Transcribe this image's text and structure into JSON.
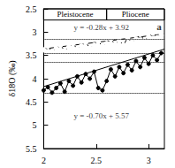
{
  "chart_data": {
    "type": "line",
    "ylabel": "δ18O (‰)",
    "xlim": [
      2,
      3.15
    ],
    "xticks": [
      2,
      2.5,
      3
    ],
    "ylim": [
      2.5,
      5.5
    ],
    "yticks": [
      2.5,
      3,
      3.5,
      4,
      4.5,
      5,
      5.5
    ],
    "series": [
      {
        "marker": "open",
        "color": "#000000",
        "line_style": "solid",
        "x": [
          2.0,
          2.04,
          2.08,
          2.12,
          2.16,
          2.2,
          2.24,
          2.28,
          2.32,
          2.36,
          2.4,
          2.44,
          2.48,
          2.52,
          2.56,
          2.6,
          2.64,
          2.68,
          2.72,
          2.76,
          2.8,
          2.84,
          2.88,
          2.92,
          2.96,
          3.0,
          3.04,
          3.08,
          3.12
        ],
        "values": [
          3.38,
          3.3,
          3.42,
          3.35,
          3.28,
          3.4,
          3.32,
          3.25,
          3.36,
          3.3,
          3.22,
          3.34,
          3.28,
          3.2,
          3.3,
          3.24,
          3.15,
          3.26,
          3.18,
          3.28,
          3.12,
          3.22,
          3.15,
          3.05,
          3.18,
          3.1,
          3.02,
          3.12,
          3.05
        ]
      },
      {
        "marker": "filled",
        "color": "#000000",
        "line_style": "solid",
        "x": [
          2.0,
          2.04,
          2.08,
          2.12,
          2.16,
          2.2,
          2.24,
          2.28,
          2.32,
          2.36,
          2.4,
          2.44,
          2.48,
          2.52,
          2.56,
          2.6,
          2.64,
          2.68,
          2.72,
          2.76,
          2.8,
          2.84,
          2.88,
          2.92,
          2.96,
          3.0,
          3.04,
          3.08,
          3.12
        ],
        "values": [
          4.25,
          4.18,
          4.3,
          4.2,
          4.1,
          4.28,
          4.05,
          4.15,
          3.95,
          4.08,
          3.9,
          4.0,
          3.85,
          4.2,
          4.25,
          4.05,
          3.8,
          3.95,
          3.75,
          3.88,
          3.7,
          3.82,
          3.62,
          3.75,
          3.55,
          3.68,
          3.5,
          3.6,
          3.45
        ]
      },
      {
        "marker": "none",
        "color": "#000000",
        "line_style": "solid",
        "x": [
          2.0,
          3.15
        ],
        "values": [
          3.36,
          3.038
        ]
      },
      {
        "marker": "none",
        "color": "#000000",
        "line_style": "solid",
        "x": [
          2.0,
          3.15
        ],
        "values": [
          4.17,
          3.365
        ]
      }
    ],
    "reference_lines": [
      3.15,
      3.45,
      3.65,
      4.3
    ],
    "epochs": [
      {
        "label": "Pleistocene",
        "from": 2,
        "to": 2.6
      },
      {
        "label": "Pliocene",
        "from": 2.6,
        "to": 3.15
      }
    ],
    "annotations": [
      {
        "text": "y = -0.28x + 3.92",
        "x": 2.55,
        "y": 2.9
      },
      {
        "text": "y = -0.70x + 5.57",
        "x": 2.55,
        "y": 4.8
      },
      {
        "text": "a",
        "x": 3.1,
        "y": 2.88
      }
    ]
  }
}
